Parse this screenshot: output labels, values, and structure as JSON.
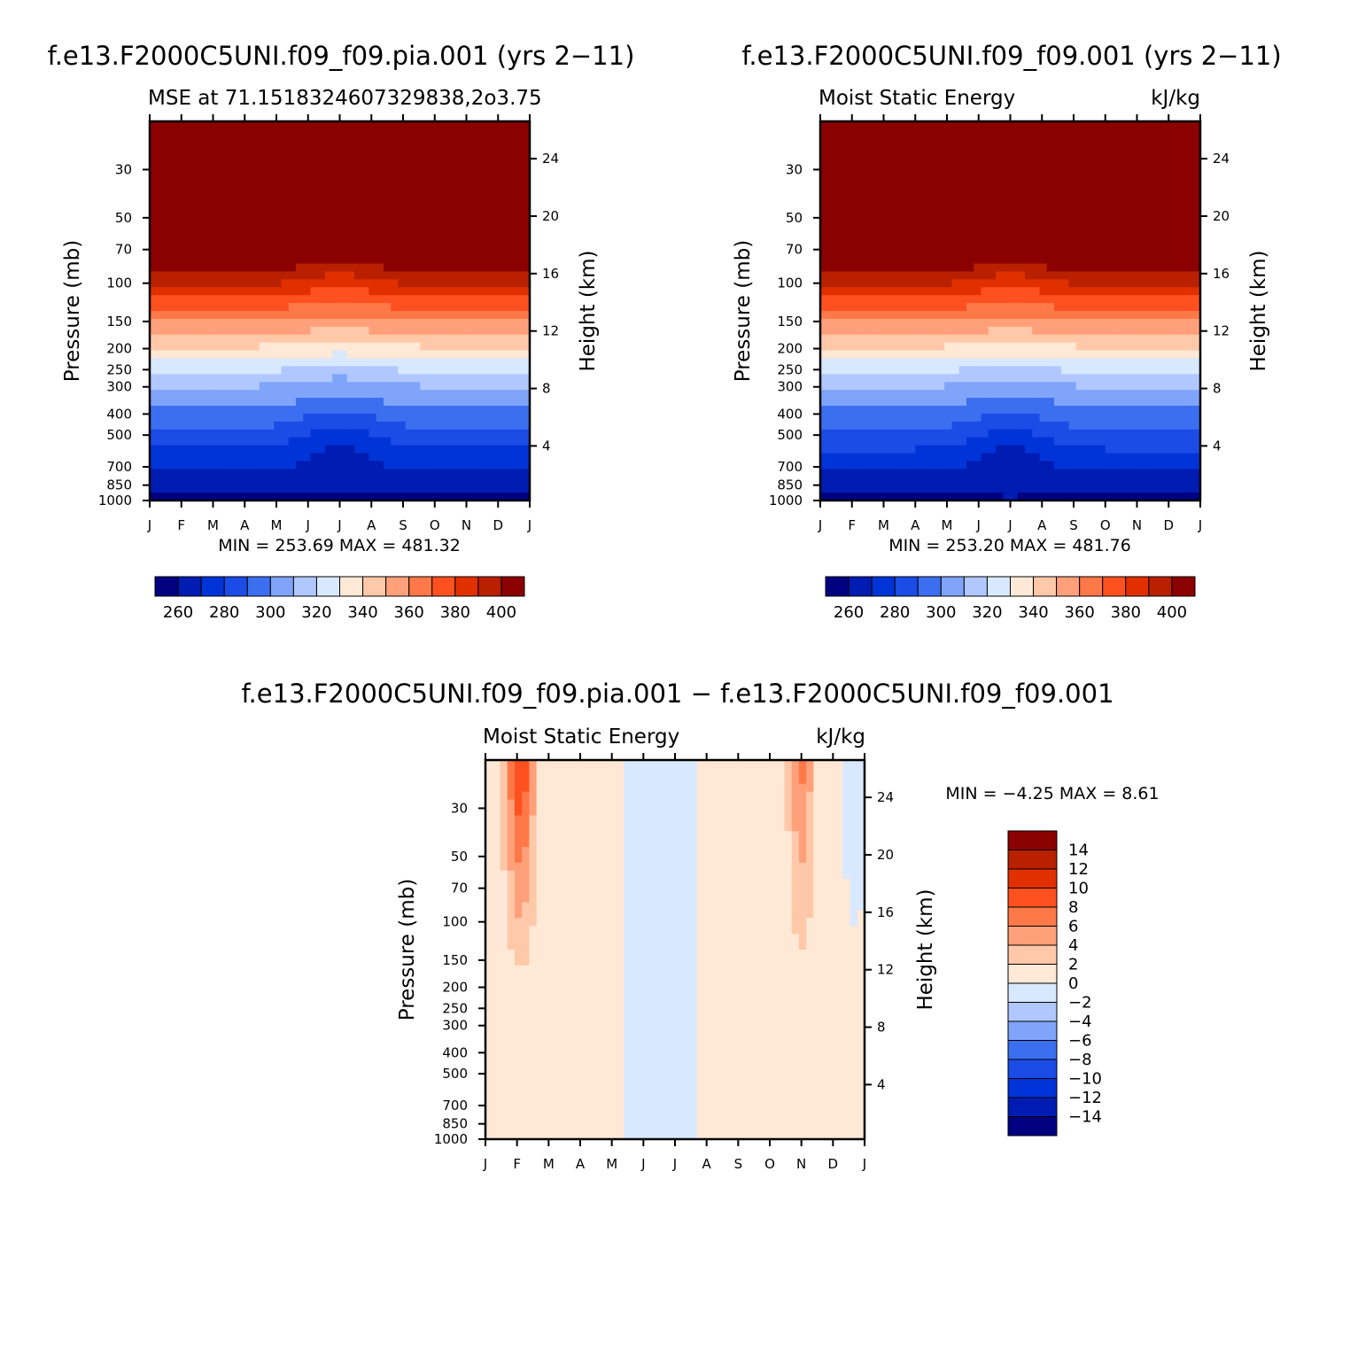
{
  "chart_data": [
    {
      "type": "heatmap",
      "title": "f.e13.F2000C5UNI.f09_f09.pia.001 (yrs 2−11)",
      "subtitle_left": "MSE at 71.1518324607329838,2o3.75",
      "subtitle_right": "",
      "units": "kJ/kg",
      "xlabel": "",
      "ylabel": "Pressure (mb)",
      "ylabel_right": "Height (km)",
      "x_ticks": [
        "J",
        "F",
        "M",
        "A",
        "M",
        "J",
        "J",
        "A",
        "S",
        "O",
        "N",
        "D",
        "J"
      ],
      "pressure_ticks": [
        "30",
        "50",
        "70",
        "100",
        "150",
        "200",
        "250",
        "300",
        "400",
        "500",
        "700",
        "850",
        "1000"
      ],
      "height_ticks": [
        "4",
        "8",
        "12",
        "16",
        "20",
        "24"
      ],
      "min_label": "MIN = 253.69 MAX = 481.32",
      "min": 253.69,
      "max": 481.32,
      "levels": [
        260,
        270,
        280,
        290,
        300,
        310,
        320,
        330,
        340,
        350,
        360,
        370,
        380,
        390,
        400
      ],
      "colorbar_labels": [
        "260",
        "280",
        "300",
        "320",
        "340",
        "360",
        "380",
        "400"
      ],
      "colorbar_orientation": "horizontal",
      "colors": [
        "#000080",
        "#001cb2",
        "#0034d8",
        "#1c4ce6",
        "#3c6ef0",
        "#80a4fa",
        "#b0c8ff",
        "#d8e8ff",
        "#ffe8d6",
        "#ffc8a8",
        "#ffa07a",
        "#ff7848",
        "#ff5020",
        "#e03000",
        "#b82000",
        "#8b0000"
      ]
    },
    {
      "type": "heatmap",
      "title": "f.e13.F2000C5UNI.f09_f09.001 (yrs 2−11)",
      "subtitle_left": "Moist Static Energy",
      "subtitle_right": "kJ/kg",
      "units": "kJ/kg",
      "xlabel": "",
      "ylabel": "Pressure (mb)",
      "ylabel_right": "Height (km)",
      "x_ticks": [
        "J",
        "F",
        "M",
        "A",
        "M",
        "J",
        "J",
        "A",
        "S",
        "O",
        "N",
        "D",
        "J"
      ],
      "pressure_ticks": [
        "30",
        "50",
        "70",
        "100",
        "150",
        "200",
        "250",
        "300",
        "400",
        "500",
        "700",
        "850",
        "1000"
      ],
      "height_ticks": [
        "4",
        "8",
        "12",
        "16",
        "20",
        "24"
      ],
      "min_label": "MIN = 253.20 MAX = 481.76",
      "min": 253.2,
      "max": 481.76,
      "levels": [
        260,
        270,
        280,
        290,
        300,
        310,
        320,
        330,
        340,
        350,
        360,
        370,
        380,
        390,
        400
      ],
      "colorbar_labels": [
        "260",
        "280",
        "300",
        "320",
        "340",
        "360",
        "380",
        "400"
      ],
      "colorbar_orientation": "horizontal",
      "colors": [
        "#000080",
        "#001cb2",
        "#0034d8",
        "#1c4ce6",
        "#3c6ef0",
        "#80a4fa",
        "#b0c8ff",
        "#d8e8ff",
        "#ffe8d6",
        "#ffc8a8",
        "#ffa07a",
        "#ff7848",
        "#ff5020",
        "#e03000",
        "#b82000",
        "#8b0000"
      ]
    },
    {
      "type": "heatmap",
      "title": "f.e13.F2000C5UNI.f09_f09.pia.001 − f.e13.F2000C5UNI.f09_f09.001",
      "subtitle_left": "Moist Static Energy",
      "subtitle_right": "kJ/kg",
      "units": "kJ/kg",
      "xlabel": "",
      "ylabel": "Pressure (mb)",
      "ylabel_right": "Height (km)",
      "x_ticks": [
        "J",
        "F",
        "M",
        "A",
        "M",
        "J",
        "J",
        "A",
        "S",
        "O",
        "N",
        "D",
        "J"
      ],
      "pressure_ticks": [
        "30",
        "50",
        "70",
        "100",
        "150",
        "200",
        "250",
        "300",
        "400",
        "500",
        "700",
        "850",
        "1000"
      ],
      "height_ticks": [
        "4",
        "8",
        "12",
        "16",
        "20",
        "24"
      ],
      "min_label": "MIN = −4.25 MAX = 8.61",
      "min": -4.25,
      "max": 8.61,
      "levels": [
        -14,
        -12,
        -10,
        -8,
        -6,
        -4,
        -2,
        0,
        2,
        4,
        6,
        8,
        10,
        12,
        14
      ],
      "colorbar_labels": [
        "14",
        "12",
        "10",
        "8",
        "6",
        "4",
        "2",
        "0",
        "−2",
        "−4",
        "−6",
        "−8",
        "−10",
        "−12",
        "−14"
      ],
      "colorbar_orientation": "vertical",
      "colors": [
        "#8b0000",
        "#b82000",
        "#e03000",
        "#ff5020",
        "#ff7848",
        "#ffa07a",
        "#ffc8a8",
        "#ffe8d6",
        "#d8e8ff",
        "#b0c8ff",
        "#80a4fa",
        "#3c6ef0",
        "#1c4ce6",
        "#0034d8",
        "#001cb2",
        "#000080"
      ]
    }
  ]
}
